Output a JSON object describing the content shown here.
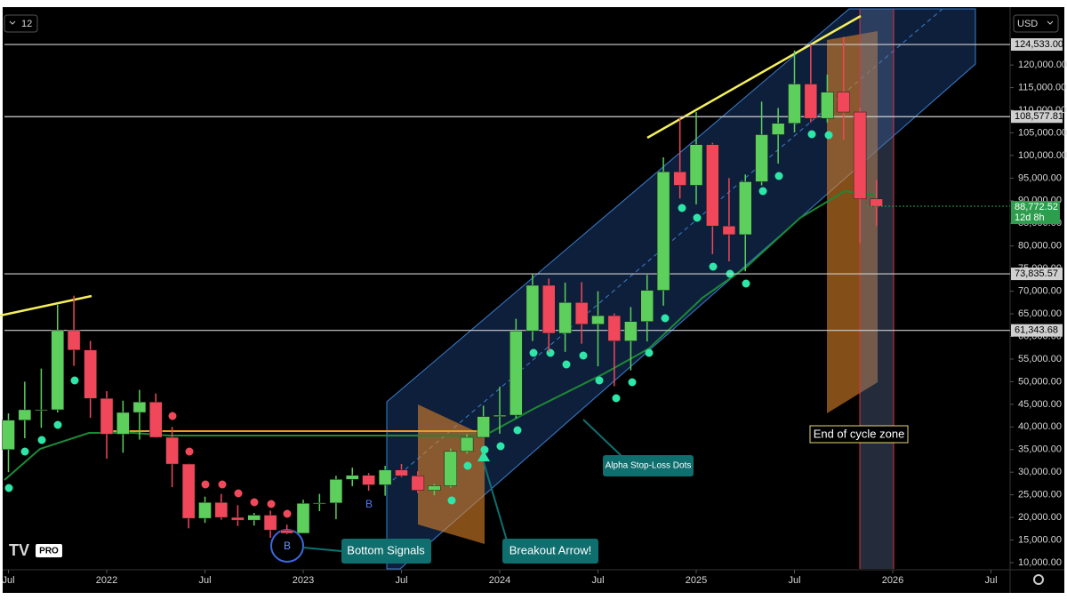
{
  "chart_data": {
    "type": "candlestick",
    "interval": "12",
    "currency": "USD",
    "logo": "PRO",
    "x": [
      2021.5,
      2021.583,
      2021.667,
      2021.75,
      2021.833,
      2021.917,
      2022,
      2022.083,
      2022.167,
      2022.25,
      2022.333,
      2022.417,
      2022.5,
      2022.583,
      2022.667,
      2022.75,
      2022.833,
      2022.917,
      2023,
      2023.083,
      2023.167,
      2023.25,
      2023.333,
      2023.417,
      2023.5,
      2023.583,
      2023.667,
      2023.75,
      2023.833,
      2023.917,
      2024,
      2024.083,
      2024.167,
      2024.25,
      2024.333,
      2024.417,
      2024.5,
      2024.583,
      2024.667,
      2024.75,
      2024.833,
      2024.917,
      2025,
      2025.083,
      2025.167,
      2025.25,
      2025.333,
      2025.417,
      2025.5,
      2025.583,
      2025.667,
      2025.75,
      2025.833,
      2025.917
    ],
    "open": [
      35000,
      41500,
      43800,
      43800,
      61300,
      57000,
      46300,
      38400,
      43200,
      45500,
      37700,
      31800,
      19800,
      23300,
      20000,
      19400,
      20500,
      17200,
      16500,
      23100,
      23200,
      28400,
      29300,
      27200,
      30500,
      29200,
      26000,
      27000,
      34600,
      37700,
      42300,
      42600,
      61200,
      71300,
      60700,
      67500,
      62700,
      64600,
      59000,
      63300,
      70200,
      96400,
      93400,
      102400,
      84400,
      82500,
      94200,
      104600,
      107100,
      115800,
      108200,
      114000,
      109600,
      90400
    ],
    "high": [
      43000,
      50000,
      52900,
      67000,
      69000,
      59000,
      47900,
      45800,
      48200,
      47400,
      40000,
      31900,
      24600,
      25200,
      22700,
      21000,
      21500,
      18400,
      23900,
      25200,
      29200,
      31000,
      29800,
      31400,
      31800,
      30200,
      27400,
      35200,
      38400,
      44700,
      48900,
      63900,
      73800,
      72800,
      71900,
      72000,
      70000,
      65100,
      66500,
      73600,
      99600,
      108300,
      109600,
      102800,
      95000,
      95800,
      111900,
      110500,
      123200,
      124500,
      117900,
      126200,
      110600,
      94600
    ],
    "low": [
      30000,
      37500,
      39800,
      43200,
      53500,
      42000,
      33000,
      34300,
      37200,
      37600,
      26700,
      17600,
      18800,
      19500,
      18100,
      18200,
      15500,
      16300,
      16500,
      21400,
      19600,
      26900,
      25900,
      24800,
      28900,
      25400,
      24900,
      26600,
      34100,
      37600,
      38500,
      41900,
      59000,
      56500,
      56600,
      58400,
      53400,
      49000,
      52500,
      58900,
      66800,
      90500,
      89200,
      78200,
      76600,
      74400,
      93400,
      98200,
      105100,
      107300,
      107300,
      103500,
      80600,
      84400
    ],
    "close": [
      41500,
      43800,
      43800,
      61300,
      57000,
      46300,
      38400,
      43200,
      45500,
      37700,
      31800,
      19800,
      23300,
      20000,
      19400,
      20500,
      17200,
      16500,
      23100,
      23200,
      28400,
      29300,
      27200,
      30500,
      29200,
      26000,
      27000,
      34600,
      37700,
      42300,
      42600,
      61200,
      71300,
      60700,
      67500,
      62700,
      64600,
      59000,
      63300,
      70200,
      96400,
      93400,
      102400,
      84400,
      82500,
      94200,
      104600,
      107100,
      115800,
      108200,
      114000,
      109600,
      90400,
      88772.52
    ],
    "up_color": "#5ccf5c",
    "down_color": "#f0485a",
    "xlim": [
      2021.48,
      2026.6
    ],
    "xticks": [
      {
        "value": 2021.5,
        "label": "Jul"
      },
      {
        "value": 2022,
        "label": "2022"
      },
      {
        "value": 2022.5,
        "label": "Jul"
      },
      {
        "value": 2023,
        "label": "2023"
      },
      {
        "value": 2023.5,
        "label": "Jul"
      },
      {
        "value": 2024,
        "label": "2024"
      },
      {
        "value": 2024.5,
        "label": "Jul"
      },
      {
        "value": 2025,
        "label": "2025"
      },
      {
        "value": 2025.5,
        "label": "Jul"
      },
      {
        "value": 2026,
        "label": "2026"
      },
      {
        "value": 2026.5,
        "label": "Jul"
      }
    ],
    "ylim": [
      8625,
      132400
    ],
    "yticks": [
      {
        "value": 10000,
        "label": "10,000.00"
      },
      {
        "value": 15000,
        "label": "15,000.00"
      },
      {
        "value": 20000,
        "label": "20,000.00"
      },
      {
        "value": 25000,
        "label": "25,000.00"
      },
      {
        "value": 30000,
        "label": "30,000.00"
      },
      {
        "value": 35000,
        "label": "35,000.00"
      },
      {
        "value": 40000,
        "label": "40,000.00"
      },
      {
        "value": 45000,
        "label": "45,000.00"
      },
      {
        "value": 50000,
        "label": "50,000.00"
      },
      {
        "value": 55000,
        "label": "55,000.00"
      },
      {
        "value": 60000,
        "label": "60,000.00"
      },
      {
        "value": 65000,
        "label": "65,000.00"
      },
      {
        "value": 70000,
        "label": "70,000.00"
      },
      {
        "value": 75000,
        "label": "75,000.00"
      },
      {
        "value": 80000,
        "label": "80,000.00"
      },
      {
        "value": 85000,
        "label": "85,000.00"
      },
      {
        "value": 90000,
        "label": "90,000.00"
      },
      {
        "value": 95000,
        "label": "95,000.00"
      },
      {
        "value": 100000,
        "label": "100,000.00"
      },
      {
        "value": 105000,
        "label": "105,000.00"
      },
      {
        "value": 110000,
        "label": "110,000.00"
      },
      {
        "value": 115000,
        "label": "115,000.00"
      },
      {
        "value": 120000,
        "label": "120,000.00"
      }
    ],
    "price_lines": [
      {
        "value": 124533,
        "label": "124,533.00"
      },
      {
        "value": 108577.81,
        "label": "108,577.81"
      },
      {
        "value": 73835.57,
        "label": "73,835.57"
      },
      {
        "value": 61343.68,
        "label": "61,343.68"
      }
    ],
    "last_price": {
      "value": 88772.52,
      "label": "88,772.52"
    },
    "countdown": "12d 8h",
    "annotations": [
      "Bottom Signals",
      "Breakout Arrow!",
      "Alpha Stop-Loss Dots",
      "End of cycle zone",
      "B",
      "B"
    ]
  }
}
